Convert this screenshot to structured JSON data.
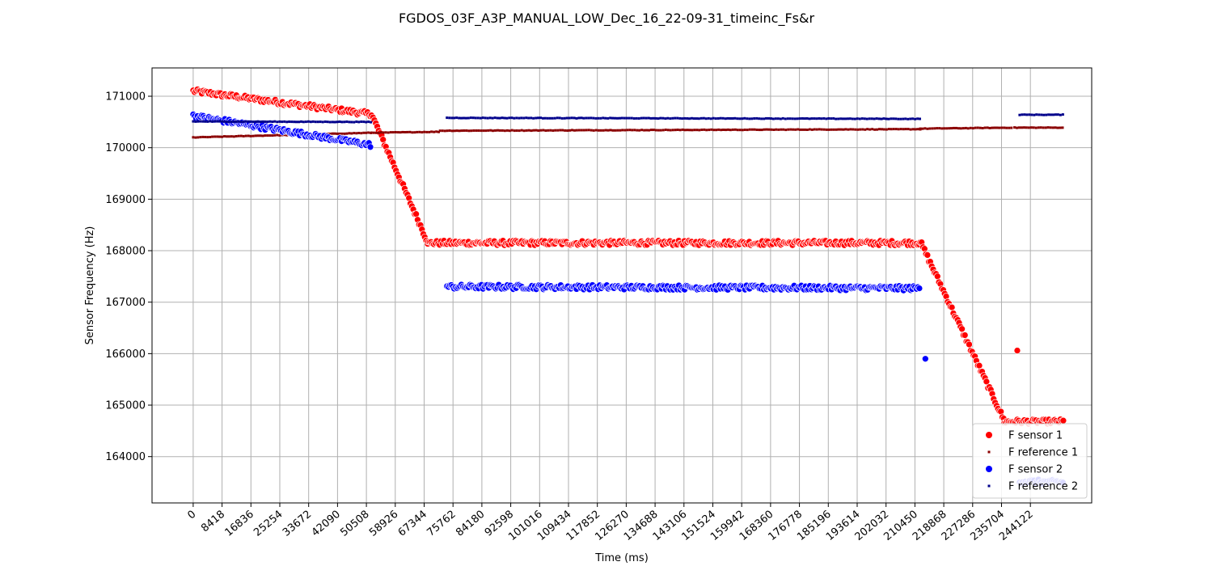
{
  "chart_data": {
    "type": "scatter",
    "title": "FGDOS_03F_A3P_MANUAL_LOW_Dec_16_22-09-31_timeinc_Fs&r",
    "xlabel": "Time (ms)",
    "ylabel": "Sensor Frequency (Hz)",
    "xlim": [
      -12000,
      262000
    ],
    "ylim": [
      163100,
      171550
    ],
    "grid": true,
    "legend_position": "bottom-right",
    "x_ticks": [
      0,
      8418,
      16836,
      25254,
      33672,
      42090,
      50508,
      58926,
      67344,
      75762,
      84180,
      92598,
      101016,
      109434,
      117852,
      126270,
      134688,
      143106,
      151524,
      159942,
      168360,
      176778,
      185196,
      193614,
      202032,
      210450,
      218868,
      227286,
      235704,
      244122
    ],
    "y_ticks": [
      164000,
      165000,
      166000,
      167000,
      168000,
      169000,
      170000,
      171000
    ],
    "series": [
      {
        "name": "F sensor 1",
        "color": "#ff0000",
        "marker": "large-dot",
        "segments": [
          {
            "x": [
              0,
              52000
            ],
            "y": [
              171100,
              170650
            ]
          },
          {
            "x": [
              52000,
              68500
            ],
            "y": [
              170650,
              168150
            ]
          },
          {
            "x": [
              68500,
              212000
            ],
            "y": [
              168150,
              168150
            ]
          },
          {
            "x": [
              212000,
              236500
            ],
            "y": [
              168180,
              164700
            ]
          },
          {
            "x": [
              236500,
              254000
            ],
            "y": [
              164680,
              164680
            ]
          }
        ],
        "outliers": [
          {
            "x": 240300,
            "y": 166060
          }
        ]
      },
      {
        "name": "F reference 1",
        "color": "#8b0000",
        "marker": "small-square",
        "segments": [
          {
            "x": [
              0,
              52000
            ],
            "y": [
              170200,
              170290
            ]
          },
          {
            "x": [
              52000,
              72000
            ],
            "y": [
              170290,
              170310
            ]
          },
          {
            "x": [
              72000,
              212000
            ],
            "y": [
              170330,
              170360
            ]
          },
          {
            "x": [
              212000,
              239000
            ],
            "y": [
              170370,
              170390
            ]
          },
          {
            "x": [
              239500,
              254000
            ],
            "y": [
              170390,
              170390
            ]
          }
        ]
      },
      {
        "name": "F sensor 2",
        "color": "#0000ff",
        "marker": "large-dot",
        "segments": [
          {
            "x": [
              0,
              52000
            ],
            "y": [
              170620,
              170050
            ]
          },
          {
            "x": [
              74000,
              212000
            ],
            "y": [
              167300,
              167270
            ]
          },
          {
            "x": [
              241000,
              254000
            ],
            "y": [
              163520,
              163500
            ]
          }
        ],
        "outliers": [
          {
            "x": 213500,
            "y": 165900
          }
        ]
      },
      {
        "name": "F reference 2",
        "color": "#00008b",
        "marker": "small-square",
        "segments": [
          {
            "x": [
              0,
              52000
            ],
            "y": [
              170510,
              170500
            ]
          },
          {
            "x": [
              74000,
              212000
            ],
            "y": [
              170580,
              170560
            ]
          },
          {
            "x": [
              241000,
              254000
            ],
            "y": [
              170640,
              170640
            ]
          }
        ]
      }
    ]
  }
}
